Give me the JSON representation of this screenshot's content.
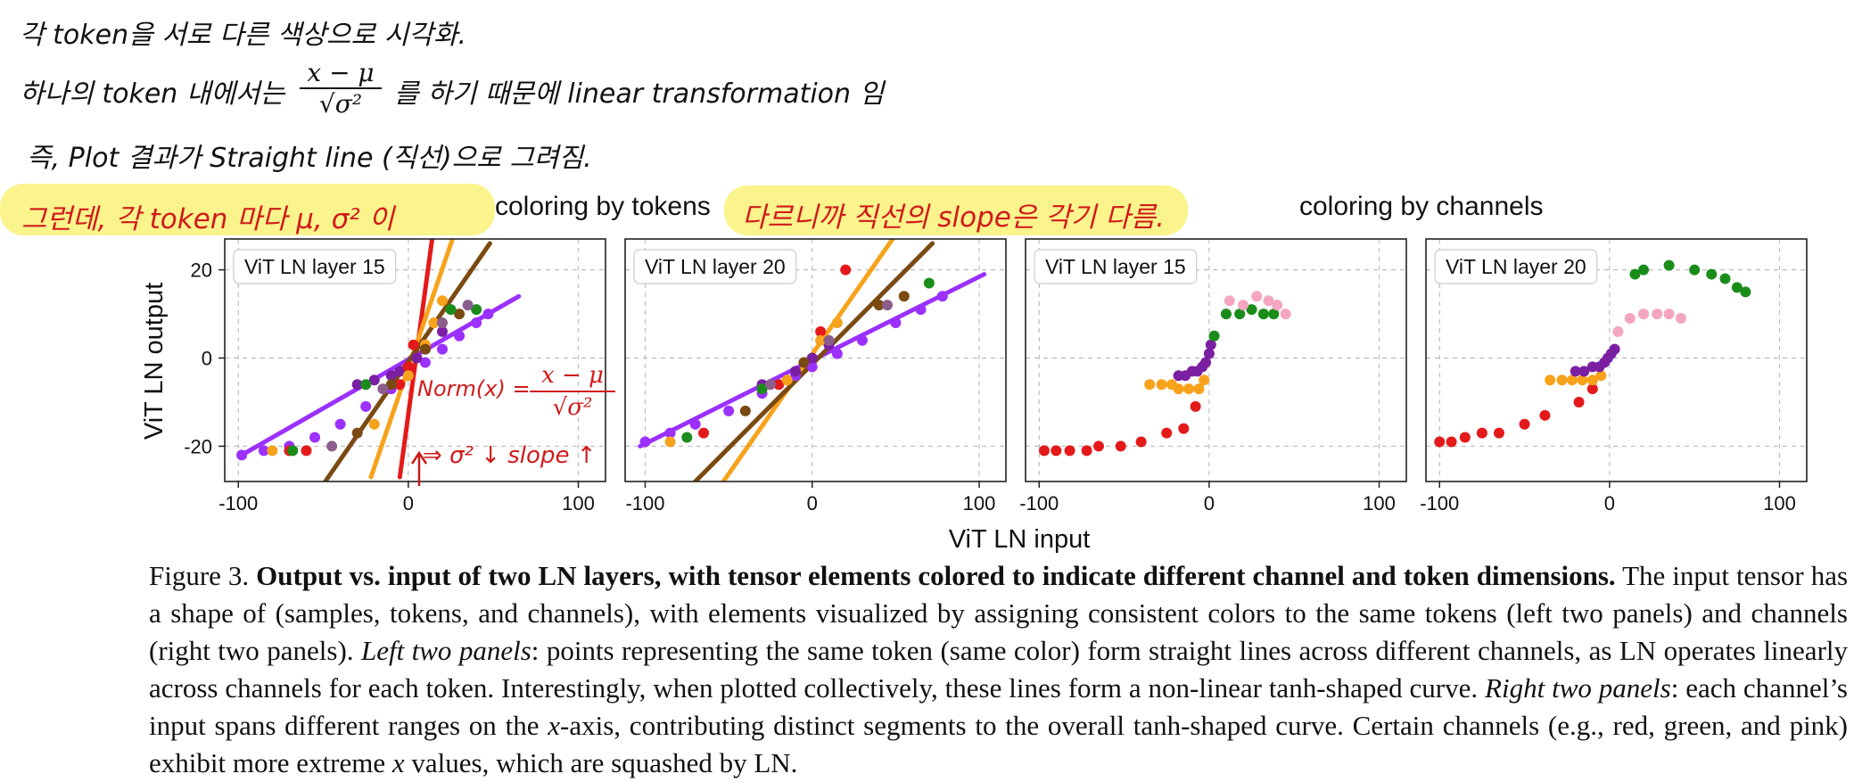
{
  "annotations": {
    "line1": "각 token을 서로 다른 색상으로 시각화.",
    "line2_pre": "하나의 token 내에서는",
    "line2_frac_num": "x − μ",
    "line2_frac_den": "√σ²",
    "line2_post": "를 하기 때문에 linear transformation 임",
    "line3": "즉, Plot 결과가 Straight line (직선)으로 그려짐.",
    "highlight_left": "그런데, 각 token 마다 μ, σ² 이",
    "highlight_right": "다르니까 직선의 slope은 각기 다름.",
    "panel1_formula": "Norm(x) =",
    "panel1_frac_num": "x − μ",
    "panel1_frac_den": "√σ²",
    "panel1_note": "⇒ σ² ↓  slope ↑"
  },
  "figure": {
    "header_tokens": "coloring by tokens",
    "header_channels": "coloring by channels",
    "ylabel": "ViT LN output",
    "xlabel": "ViT LN input"
  },
  "caption": {
    "figure_label": "Figure 3.",
    "bold_title": "Output vs. input of two LN layers, with tensor elements colored to indicate different channel and token dimensions.",
    "text1": " The input tensor has a shape of (samples, tokens, and channels), with elements visualized by assigning consistent colors to the same tokens (left two panels) and channels (right two panels). ",
    "italic1": "Left two panels",
    "text2": ": points representing the same token (same color) form straight lines across different channels, as LN operates linearly across channels for each token. Interestingly, when plotted collectively, these lines form a non-linear tanh-shaped curve. ",
    "italic2": "Right two panels",
    "text3": ": each channel’s input spans different ranges on the ",
    "italic3": "x",
    "text4": "-axis, contributing distinct segments to the overall tanh-shaped curve. Certain channels (e.g., red, green, and pink) exhibit more extreme ",
    "italic4": "x",
    "text5": " values, which are squashed by LN."
  },
  "colors": {
    "red": "#e41a1a",
    "orange": "#f7a21b",
    "purple": "#7b1fa2",
    "violet": "#9b30ff",
    "brown": "#7a4a12",
    "green": "#1a8c1a",
    "pink": "#f4a6c0",
    "mauve": "#8b5e8b",
    "annotation_red": "#d01a1a",
    "highlight": "#fbf38c"
  },
  "chart_data": [
    {
      "type": "scatter",
      "title": "ViT LN layer 15",
      "xlabel": "",
      "ylabel": "",
      "xlim": [
        -108,
        116
      ],
      "ylim": [
        -28,
        27
      ],
      "xticks": [
        -100,
        0,
        100
      ],
      "yticks": [
        -20,
        0,
        20
      ],
      "tick_labels_x": [
        "-100",
        "0",
        "100"
      ],
      "tick_labels_y": [
        "-20",
        "0",
        "20"
      ],
      "grid": true,
      "series": [
        {
          "color": "#9b30ff",
          "points": [
            [
              -98,
              -22
            ],
            [
              -85,
              -21
            ],
            [
              -70,
              -20
            ],
            [
              -55,
              -18
            ],
            [
              -40,
              -15
            ],
            [
              -25,
              -11
            ],
            [
              -10,
              -7
            ],
            [
              0,
              -4
            ],
            [
              10,
              -1
            ],
            [
              20,
              2
            ],
            [
              30,
              5
            ],
            [
              40,
              8
            ],
            [
              47,
              10
            ]
          ],
          "line": [
            [
              -98,
              -22
            ],
            [
              65,
              14
            ]
          ]
        },
        {
          "color": "#7b1fa2",
          "points": [
            [
              -30,
              -6
            ],
            [
              -20,
              -5
            ],
            [
              -10,
              -4
            ],
            [
              -5,
              -3
            ],
            [
              0,
              -2
            ],
            [
              5,
              0
            ],
            [
              10,
              2
            ],
            [
              20,
              6
            ]
          ]
        },
        {
          "color": "#e41a1a",
          "points": [
            [
              -70,
              -21
            ],
            [
              -60,
              -21
            ],
            [
              -5,
              -6
            ],
            [
              0,
              -2
            ],
            [
              3,
              3
            ]
          ],
          "line": [
            [
              -5,
              -27
            ],
            [
              14,
              27
            ]
          ]
        },
        {
          "color": "#f7a21b",
          "points": [
            [
              -80,
              -21
            ],
            [
              -20,
              -15
            ],
            [
              0,
              -4
            ],
            [
              10,
              3
            ],
            [
              15,
              8
            ],
            [
              20,
              13
            ]
          ],
          "line": [
            [
              -22,
              -27
            ],
            [
              26,
              27
            ]
          ]
        },
        {
          "color": "#7a4a12",
          "points": [
            [
              -30,
              -17
            ],
            [
              -10,
              -6
            ],
            [
              10,
              2
            ],
            [
              30,
              10
            ]
          ],
          "line": [
            [
              -65,
              -37
            ],
            [
              48,
              26
            ]
          ]
        },
        {
          "color": "#1a8c1a",
          "points": [
            [
              -68,
              -21
            ],
            [
              -25,
              -6
            ],
            [
              25,
              11
            ],
            [
              40,
              11
            ]
          ]
        },
        {
          "color": "#8b5e8b",
          "points": [
            [
              -45,
              -20
            ],
            [
              -15,
              -7
            ],
            [
              20,
              8
            ],
            [
              35,
              12
            ]
          ]
        }
      ]
    },
    {
      "type": "scatter",
      "title": "ViT LN layer 20",
      "xlabel": "",
      "ylabel": "",
      "xlim": [
        -112,
        116
      ],
      "ylim": [
        -28,
        27
      ],
      "xticks": [
        -100,
        0,
        100
      ],
      "yticks": [
        -20,
        0,
        20
      ],
      "tick_labels_x": [
        "-100",
        "0",
        "100"
      ],
      "tick_labels_y": [
        "-20",
        "0",
        "20"
      ],
      "grid": true,
      "series": [
        {
          "color": "#9b30ff",
          "points": [
            [
              -100,
              -19
            ],
            [
              -85,
              -17
            ],
            [
              -70,
              -15
            ],
            [
              -50,
              -12
            ],
            [
              -30,
              -8
            ],
            [
              -10,
              -4
            ],
            [
              0,
              -2
            ],
            [
              15,
              1
            ],
            [
              30,
              4
            ],
            [
              50,
              8
            ],
            [
              65,
              11
            ],
            [
              78,
              14
            ]
          ],
          "line": [
            [
              -103,
              -20
            ],
            [
              103,
              19
            ]
          ]
        },
        {
          "color": "#7b1fa2",
          "points": [
            [
              -30,
              -6
            ],
            [
              -10,
              -3
            ],
            [
              0,
              0
            ],
            [
              10,
              3
            ]
          ]
        },
        {
          "color": "#e41a1a",
          "points": [
            [
              -65,
              -17
            ],
            [
              -20,
              -6
            ],
            [
              5,
              6
            ],
            [
              20,
              20
            ]
          ]
        },
        {
          "color": "#f7a21b",
          "points": [
            [
              -85,
              -19
            ],
            [
              -15,
              -5
            ],
            [
              5,
              4
            ],
            [
              15,
              8
            ]
          ],
          "line": [
            [
              -55,
              -29
            ],
            [
              50,
              28
            ]
          ]
        },
        {
          "color": "#7a4a12",
          "points": [
            [
              -40,
              -12
            ],
            [
              -5,
              -1
            ],
            [
              40,
              12
            ],
            [
              55,
              14
            ]
          ],
          "line": [
            [
              -70,
              -28
            ],
            [
              72,
              26
            ]
          ]
        },
        {
          "color": "#1a8c1a",
          "points": [
            [
              -75,
              -18
            ],
            [
              -30,
              -7
            ],
            [
              70,
              17
            ]
          ]
        },
        {
          "color": "#8b5e8b",
          "points": [
            [
              -25,
              -6
            ],
            [
              10,
              4
            ],
            [
              45,
              12
            ]
          ]
        }
      ]
    },
    {
      "type": "scatter",
      "title": "ViT LN layer 15",
      "xlabel": "",
      "ylabel": "",
      "xlim": [
        -108,
        116
      ],
      "ylim": [
        -28,
        27
      ],
      "xticks": [
        -100,
        0,
        100
      ],
      "yticks": [
        -20,
        0,
        20
      ],
      "tick_labels_x": [
        "-100",
        "0",
        "100"
      ],
      "tick_labels_y": [
        "-20",
        "0",
        "20"
      ],
      "grid": true,
      "series": [
        {
          "color": "#e41a1a",
          "points": [
            [
              -97,
              -21
            ],
            [
              -90,
              -21
            ],
            [
              -82,
              -21
            ],
            [
              -72,
              -21
            ],
            [
              -65,
              -20
            ],
            [
              -52,
              -20
            ],
            [
              -40,
              -19
            ],
            [
              -25,
              -17
            ],
            [
              -15,
              -16
            ],
            [
              -8,
              -11
            ]
          ]
        },
        {
          "color": "#f7a21b",
          "points": [
            [
              -35,
              -6
            ],
            [
              -28,
              -6
            ],
            [
              -22,
              -6
            ],
            [
              -18,
              -7
            ],
            [
              -12,
              -7
            ],
            [
              -6,
              -7
            ],
            [
              -3,
              -5
            ]
          ]
        },
        {
          "color": "#7b1fa2",
          "points": [
            [
              -18,
              -4
            ],
            [
              -14,
              -4
            ],
            [
              -10,
              -3
            ],
            [
              -7,
              -3
            ],
            [
              -4,
              -2
            ],
            [
              -2,
              -1
            ],
            [
              0,
              1
            ],
            [
              1,
              3
            ]
          ]
        },
        {
          "color": "#1a8c1a",
          "points": [
            [
              3,
              5
            ],
            [
              10,
              10
            ],
            [
              18,
              10
            ],
            [
              25,
              11
            ],
            [
              32,
              10
            ],
            [
              38,
              10
            ]
          ]
        },
        {
          "color": "#f4a6c0",
          "points": [
            [
              12,
              13
            ],
            [
              20,
              12
            ],
            [
              28,
              14
            ],
            [
              35,
              13
            ],
            [
              40,
              12
            ],
            [
              45,
              10
            ]
          ]
        }
      ]
    },
    {
      "type": "scatter",
      "title": "ViT LN layer 20",
      "xlabel": "",
      "ylabel": "",
      "xlim": [
        -108,
        116
      ],
      "ylim": [
        -28,
        27
      ],
      "xticks": [
        -100,
        0,
        100
      ],
      "yticks": [
        -20,
        0,
        20
      ],
      "tick_labels_x": [
        "-100",
        "0",
        "100"
      ],
      "tick_labels_y": [
        "-20",
        "0",
        "20"
      ],
      "grid": true,
      "series": [
        {
          "color": "#e41a1a",
          "points": [
            [
              -100,
              -19
            ],
            [
              -93,
              -19
            ],
            [
              -85,
              -18
            ],
            [
              -75,
              -17
            ],
            [
              -65,
              -17
            ],
            [
              -50,
              -15
            ],
            [
              -38,
              -13
            ],
            [
              -18,
              -10
            ],
            [
              -10,
              -7
            ]
          ]
        },
        {
          "color": "#f7a21b",
          "points": [
            [
              -35,
              -5
            ],
            [
              -28,
              -5
            ],
            [
              -22,
              -5
            ],
            [
              -16,
              -5
            ],
            [
              -10,
              -5
            ],
            [
              -5,
              -4
            ]
          ]
        },
        {
          "color": "#7b1fa2",
          "points": [
            [
              -20,
              -3
            ],
            [
              -15,
              -3
            ],
            [
              -10,
              -2
            ],
            [
              -6,
              -2
            ],
            [
              -3,
              -1
            ],
            [
              -1,
              0
            ],
            [
              1,
              1
            ],
            [
              3,
              2
            ]
          ]
        },
        {
          "color": "#f4a6c0",
          "points": [
            [
              5,
              6
            ],
            [
              12,
              9
            ],
            [
              20,
              10
            ],
            [
              28,
              10
            ],
            [
              35,
              10
            ],
            [
              42,
              9
            ]
          ]
        },
        {
          "color": "#1a8c1a",
          "points": [
            [
              15,
              19
            ],
            [
              20,
              20
            ],
            [
              35,
              21
            ],
            [
              50,
              20
            ],
            [
              60,
              19
            ],
            [
              68,
              18
            ],
            [
              75,
              16
            ],
            [
              80,
              15
            ]
          ]
        }
      ]
    }
  ]
}
